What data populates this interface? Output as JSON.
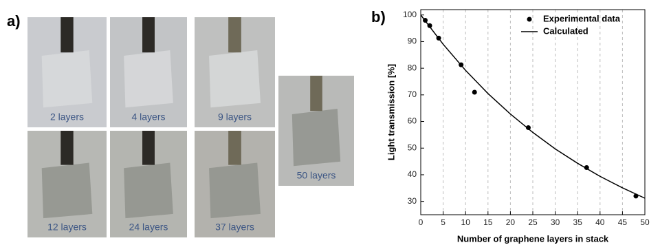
{
  "panel_a": {
    "label": "a)",
    "photos": [
      {
        "label": "2 layers"
      },
      {
        "label": "4 layers"
      },
      {
        "label": "9 layers"
      },
      {
        "label": "12 layers"
      },
      {
        "label": "24 layers"
      },
      {
        "label": "37 layers"
      },
      {
        "label": "50 layers"
      }
    ]
  },
  "chart_data": {
    "type": "scatter",
    "panel_label": "b)",
    "x_label": "Number of graphene layers in stack",
    "y_label": "Light transmission [%]",
    "xlim": [
      0,
      50
    ],
    "ylim": [
      25,
      102
    ],
    "xticks": [
      0,
      5,
      10,
      15,
      20,
      25,
      30,
      35,
      40,
      45,
      50
    ],
    "yticks": [
      30,
      40,
      50,
      60,
      70,
      80,
      90,
      100
    ],
    "grid": true,
    "legend": "top-right",
    "series": [
      {
        "name": "Experimental data",
        "color": "#000000",
        "mode": "markers",
        "x": [
          1,
          2,
          4,
          9,
          12,
          24,
          37,
          48
        ],
        "values": [
          98,
          96,
          91.3,
          81.3,
          71,
          57.7,
          42.7,
          32
        ]
      },
      {
        "name": "Calculated",
        "color": "#000000",
        "mode": "line",
        "x": [
          0,
          5,
          10,
          15,
          20,
          25,
          30,
          35,
          40,
          45,
          50
        ],
        "values": [
          100,
          89.0,
          79.2,
          70.5,
          62.8,
          55.9,
          49.7,
          44.3,
          39.4,
          35.1,
          31.2
        ]
      }
    ]
  }
}
